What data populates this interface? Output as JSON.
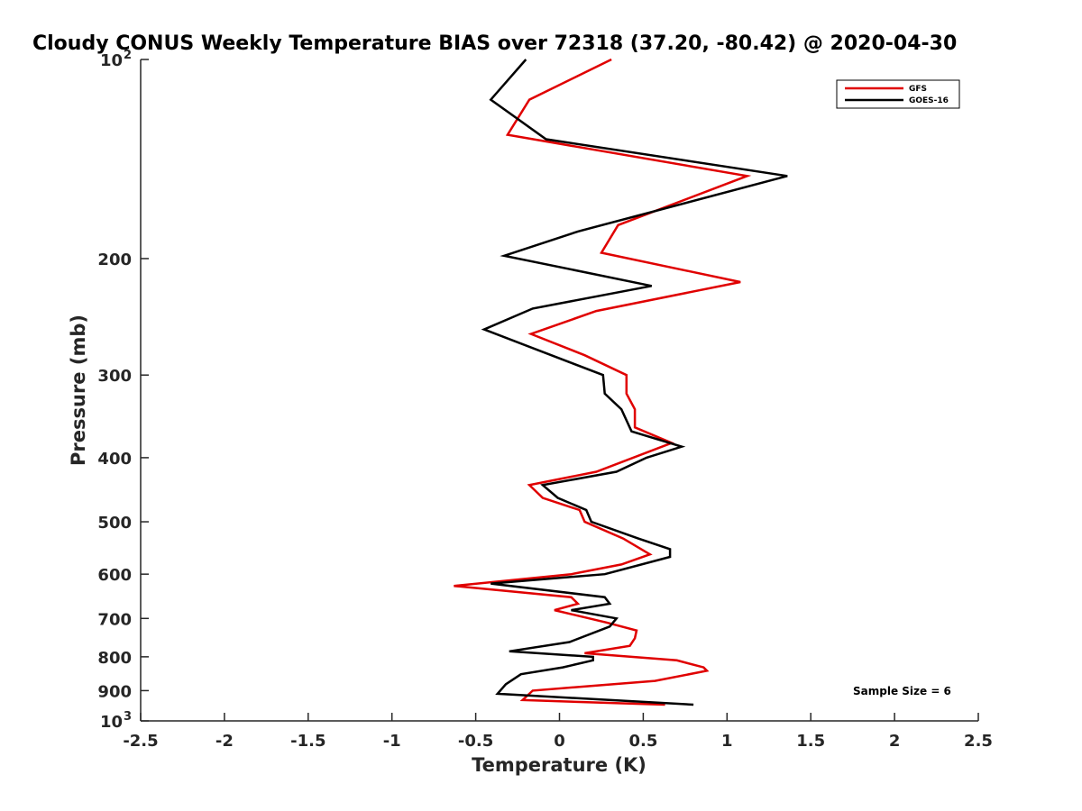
{
  "chart_data": {
    "type": "line",
    "title": "Cloudy CONUS Weekly Temperature BIAS over 72318 (37.20, -80.42) @ 2020-04-30",
    "xlabel": "Temperature (K)",
    "ylabel": "Pressure (mb)",
    "xlim": [
      -2.5,
      2.5
    ],
    "ylim": [
      100,
      1000
    ],
    "y_scale": "log",
    "y_reversed": true,
    "grid": false,
    "legend_position": "top-right",
    "x_ticks": [
      "-2.5",
      "-2",
      "-1.5",
      "-1",
      "-0.5",
      "0",
      "0.5",
      "1",
      "1.5",
      "2",
      "2.5"
    ],
    "y_ticks": [
      {
        "value": 100,
        "label": "10",
        "sup": "2"
      },
      {
        "value": 200,
        "label": "200"
      },
      {
        "value": 300,
        "label": "300"
      },
      {
        "value": 400,
        "label": "400"
      },
      {
        "value": 500,
        "label": "500"
      },
      {
        "value": 600,
        "label": "600"
      },
      {
        "value": 700,
        "label": "700"
      },
      {
        "value": 800,
        "label": "800"
      },
      {
        "value": 900,
        "label": "900"
      },
      {
        "value": 1000,
        "label": "10",
        "sup": "3"
      }
    ],
    "series": [
      {
        "name": "GFS",
        "color": "#e00000",
        "points": [
          [
            0.31,
            100
          ],
          [
            -0.18,
            115
          ],
          [
            -0.31,
            130
          ],
          [
            1.12,
            150
          ],
          [
            0.35,
            178
          ],
          [
            0.25,
            196
          ],
          [
            1.08,
            217
          ],
          [
            0.22,
            240
          ],
          [
            -0.17,
            260
          ],
          [
            0.15,
            280
          ],
          [
            0.4,
            300
          ],
          [
            0.4,
            320
          ],
          [
            0.45,
            338
          ],
          [
            0.45,
            360
          ],
          [
            0.67,
            380
          ],
          [
            0.22,
            420
          ],
          [
            -0.18,
            440
          ],
          [
            -0.1,
            460
          ],
          [
            0.12,
            480
          ],
          [
            0.15,
            500
          ],
          [
            0.38,
            530
          ],
          [
            0.54,
            560
          ],
          [
            0.37,
            580
          ],
          [
            0.07,
            600
          ],
          [
            -0.63,
            625
          ],
          [
            0.07,
            650
          ],
          [
            0.11,
            665
          ],
          [
            -0.03,
            680
          ],
          [
            0.28,
            710
          ],
          [
            0.46,
            730
          ],
          [
            0.45,
            750
          ],
          [
            0.42,
            770
          ],
          [
            0.15,
            790
          ],
          [
            0.7,
            810
          ],
          [
            0.86,
            830
          ],
          [
            0.88,
            840
          ],
          [
            0.57,
            870
          ],
          [
            -0.16,
            900
          ],
          [
            -0.22,
            930
          ],
          [
            0.63,
            945
          ]
        ]
      },
      {
        "name": "GOES-16",
        "color": "#000000",
        "points": [
          [
            -0.2,
            100
          ],
          [
            -0.41,
            115
          ],
          [
            -0.08,
            132
          ],
          [
            1.36,
            150
          ],
          [
            0.11,
            182
          ],
          [
            -0.33,
            198
          ],
          [
            0.55,
            220
          ],
          [
            -0.16,
            238
          ],
          [
            -0.45,
            256
          ],
          [
            0.26,
            300
          ],
          [
            0.27,
            320
          ],
          [
            0.37,
            338
          ],
          [
            0.43,
            365
          ],
          [
            0.73,
            385
          ],
          [
            0.52,
            400
          ],
          [
            0.34,
            420
          ],
          [
            -0.1,
            440
          ],
          [
            -0.01,
            460
          ],
          [
            0.16,
            480
          ],
          [
            0.19,
            500
          ],
          [
            0.47,
            530
          ],
          [
            0.66,
            550
          ],
          [
            0.66,
            565
          ],
          [
            0.27,
            600
          ],
          [
            -0.41,
            620
          ],
          [
            0.27,
            650
          ],
          [
            0.3,
            665
          ],
          [
            0.07,
            680
          ],
          [
            0.34,
            700
          ],
          [
            0.3,
            720
          ],
          [
            0.06,
            760
          ],
          [
            -0.3,
            785
          ],
          [
            0.2,
            800
          ],
          [
            0.2,
            810
          ],
          [
            0.02,
            830
          ],
          [
            -0.23,
            850
          ],
          [
            -0.32,
            880
          ],
          [
            -0.37,
            910
          ],
          [
            0.8,
            945
          ]
        ]
      }
    ],
    "annotation": "Sample Size = 6"
  }
}
